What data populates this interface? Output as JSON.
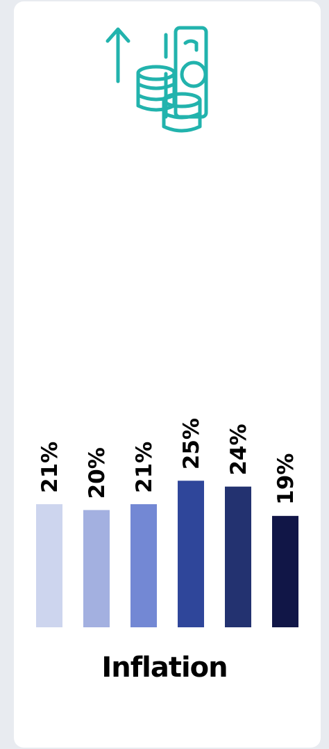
{
  "chart_data": {
    "type": "bar",
    "title": "Inflation",
    "categories": [
      "",
      "",
      "",
      "",
      "",
      ""
    ],
    "values": [
      21,
      20,
      21,
      25,
      24,
      19
    ],
    "value_labels": [
      "21%",
      "20%",
      "21%",
      "25%",
      "24%",
      "19%"
    ],
    "colors": [
      "#cdd5ee",
      "#a3b0e0",
      "#7388d4",
      "#2f469a",
      "#233270",
      "#111647"
    ],
    "ylim": [
      0,
      21
    ],
    "grid": false,
    "legend": "none",
    "label_orientation": "vertical"
  },
  "icon": {
    "name": "money-growth-icon",
    "color": "#22b3ad"
  }
}
